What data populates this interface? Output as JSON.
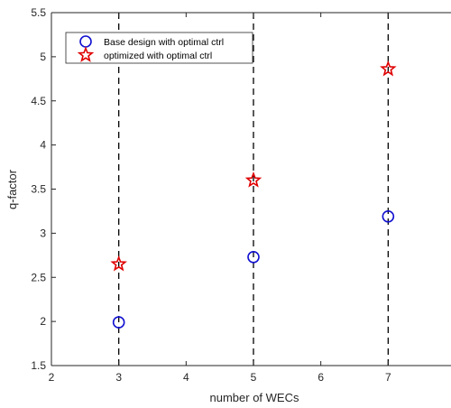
{
  "chart_data": {
    "type": "scatter",
    "title": "",
    "xlabel": "number of WECs",
    "ylabel": "q-factor",
    "xlim": [
      2,
      8
    ],
    "ylim": [
      1.5,
      5.5
    ],
    "xticks": [
      2,
      3,
      4,
      5,
      6,
      7,
      8
    ],
    "xtick_labels": [
      "2",
      "3",
      "4",
      "5",
      "6",
      "7",
      "8"
    ],
    "yticks": [
      1.5,
      2,
      2.5,
      3,
      3.5,
      4,
      4.5,
      5,
      5.5
    ],
    "ytick_labels": [
      "1.5",
      "2",
      "2.5",
      "3",
      "3.5",
      "4",
      "4.5",
      "5",
      "5.5"
    ],
    "vertical_dashed_lines_at_x": [
      3,
      5,
      7
    ],
    "grid": false,
    "legend_position": "top-left",
    "series": [
      {
        "name": "Base design with optimal ctrl",
        "marker": "circle",
        "color": "#1010d0",
        "x": [
          3,
          5,
          7
        ],
        "y": [
          1.99,
          2.73,
          3.19
        ]
      },
      {
        "name": "optimized with optimal ctrl",
        "marker": "star",
        "color": "#e00000",
        "x": [
          3,
          5,
          7
        ],
        "y": [
          2.65,
          3.6,
          4.86
        ]
      }
    ]
  }
}
